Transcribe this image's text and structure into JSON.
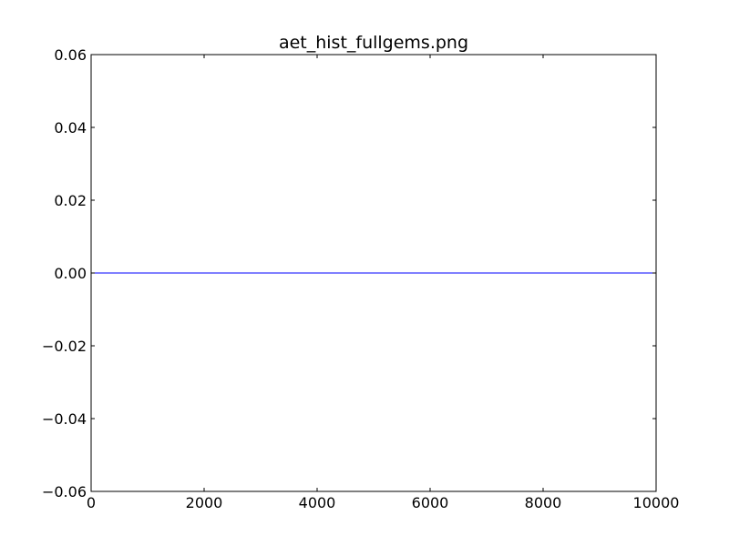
{
  "chart_data": {
    "type": "line",
    "title": "aet_hist_fullgems.png",
    "xlabel": "",
    "ylabel": "",
    "xlim": [
      0,
      10000
    ],
    "ylim": [
      -0.06,
      0.06
    ],
    "x_ticks": [
      0,
      2000,
      4000,
      6000,
      8000,
      10000
    ],
    "x_tick_labels": [
      "0",
      "2000",
      "4000",
      "6000",
      "8000",
      "10000"
    ],
    "y_ticks": [
      0.06,
      0.04,
      0.02,
      0.0,
      -0.02,
      -0.04,
      -0.06
    ],
    "y_tick_labels": [
      "0.06",
      "0.04",
      "0.02",
      "0.00",
      "−0.02",
      "−0.04",
      "−0.06"
    ],
    "grid": false,
    "series": [
      {
        "color": "#0000ff",
        "x": [
          0,
          10000
        ],
        "y": [
          0,
          0
        ]
      }
    ]
  }
}
